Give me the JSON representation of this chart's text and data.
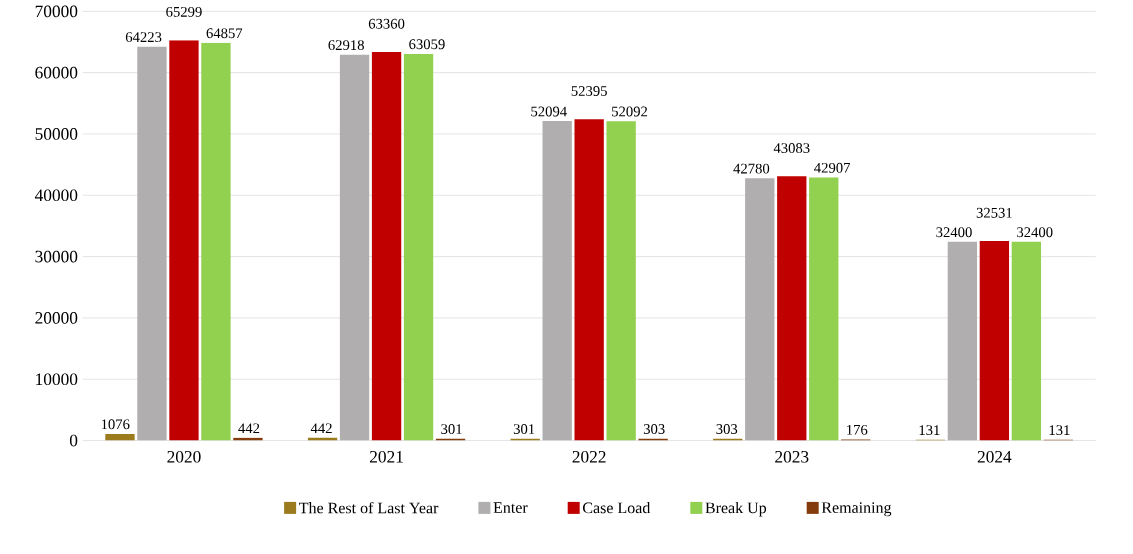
{
  "chart_data": {
    "type": "bar",
    "categories": [
      "2020",
      "2021",
      "2022",
      "2023",
      "2024"
    ],
    "series": [
      {
        "name": "The Rest of Last Year",
        "color": "#9c7a1e",
        "values": [
          1076,
          442,
          301,
          303,
          131
        ]
      },
      {
        "name": "Enter",
        "color": "#b0aeae",
        "values": [
          64223,
          62918,
          52094,
          42780,
          32400
        ]
      },
      {
        "name": "Case Load",
        "color": "#c00000",
        "values": [
          65299,
          63360,
          52395,
          43083,
          32531
        ]
      },
      {
        "name": "Break Up",
        "color": "#92d050",
        "values": [
          64857,
          63059,
          52092,
          42907,
          32400
        ]
      },
      {
        "name": "Remaining",
        "color": "#843c0c",
        "values": [
          442,
          301,
          303,
          176,
          131
        ]
      }
    ],
    "ylim": [
      0,
      70000
    ],
    "yticks": [
      0,
      10000,
      20000,
      30000,
      40000,
      50000,
      60000,
      70000
    ],
    "grid": "y",
    "legend": "bottom",
    "data_labels": true
  }
}
